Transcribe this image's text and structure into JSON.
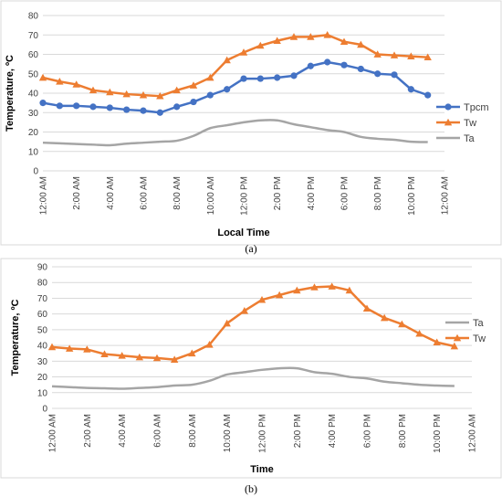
{
  "chart_data": [
    {
      "type": "line",
      "xlabel": "Local Time",
      "ylabel": "Temperature, ºC",
      "ylim": [
        0,
        80
      ],
      "yticks": [
        0,
        10,
        20,
        30,
        40,
        50,
        60,
        70,
        80
      ],
      "xtick_labels": [
        "12:00 AM",
        "2:00 AM",
        "4:00 AM",
        "6:00 AM",
        "8:00 AM",
        "10:00 AM",
        "12:00 PM",
        "2:00 PM",
        "4:00 PM",
        "6:00 PM",
        "8:00 PM",
        "10:00 PM",
        "12:00 AM"
      ],
      "x_hours": [
        0,
        1,
        2,
        3,
        4,
        5,
        6,
        7,
        8,
        9,
        10,
        11,
        12,
        13,
        14,
        15,
        16,
        17,
        18,
        19,
        20,
        21,
        22,
        23
      ],
      "legend_position": "right",
      "series": [
        {
          "name": "Tpcm",
          "color": "#4472C4",
          "marker": "circle",
          "values": [
            35,
            33.5,
            33.5,
            33,
            32.5,
            31.5,
            31,
            30,
            33,
            35.5,
            39,
            42,
            47.5,
            47.5,
            48,
            49,
            54,
            56,
            54.5,
            52.5,
            50,
            49.5,
            42,
            39
          ]
        },
        {
          "name": "Tw",
          "color": "#ED7D31",
          "marker": "triangle",
          "values": [
            48,
            46,
            44.5,
            41.5,
            40.5,
            39.5,
            39,
            38.5,
            41.5,
            44,
            48,
            57,
            61,
            64.5,
            67,
            69,
            69,
            70,
            66.5,
            65,
            60,
            59.5,
            59,
            58.5
          ]
        },
        {
          "name": "Ta",
          "color": "#A5A5A5",
          "marker": "none",
          "values": [
            14.5,
            14.2,
            13.8,
            13.5,
            13.2,
            14,
            14.5,
            15,
            15.5,
            18,
            22,
            23.5,
            25,
            26,
            26,
            24,
            22.5,
            21,
            20,
            17.5,
            16.5,
            16,
            15,
            14.8
          ]
        }
      ]
    },
    {
      "type": "line",
      "xlabel": "Time",
      "ylabel": "Temperature, ºC",
      "ylim": [
        0,
        90
      ],
      "yticks": [
        0,
        10,
        20,
        30,
        40,
        50,
        60,
        70,
        80,
        90
      ],
      "xtick_labels": [
        "12:00 AM",
        "2:00 AM",
        "4:00 AM",
        "6:00 AM",
        "8:00 AM",
        "10:00 AM",
        "12:00 PM",
        "2:00 PM",
        "4:00 PM",
        "6:00 PM",
        "8:00 PM",
        "10:00 PM",
        "12:00 AM"
      ],
      "x_hours": [
        0,
        1,
        2,
        3,
        4,
        5,
        6,
        7,
        8,
        9,
        10,
        11,
        12,
        13,
        14,
        15,
        16,
        17,
        18,
        19,
        20,
        21,
        22,
        23
      ],
      "legend_position": "right",
      "series": [
        {
          "name": "Ta",
          "color": "#A5A5A5",
          "marker": "none",
          "values": [
            14,
            13.5,
            13,
            12.8,
            12.5,
            13,
            13.5,
            14.5,
            15,
            17.5,
            21.5,
            23,
            24.5,
            25.5,
            25.5,
            23,
            22,
            20,
            19,
            17,
            16,
            15,
            14.5,
            14.2
          ]
        },
        {
          "name": "Tw",
          "color": "#ED7D31",
          "marker": "triangle",
          "values": [
            39,
            38,
            37.5,
            34.5,
            33.5,
            32.5,
            32,
            31,
            35,
            40.5,
            54,
            62,
            69,
            72,
            75,
            77,
            77.5,
            75,
            63.5,
            57.5,
            53.5,
            47.5,
            42,
            39.5
          ]
        }
      ]
    }
  ],
  "captions": [
    "(a)",
    "(b)"
  ],
  "panel_border_color": "#d9d9d9",
  "grid_color": "#d9d9d9"
}
